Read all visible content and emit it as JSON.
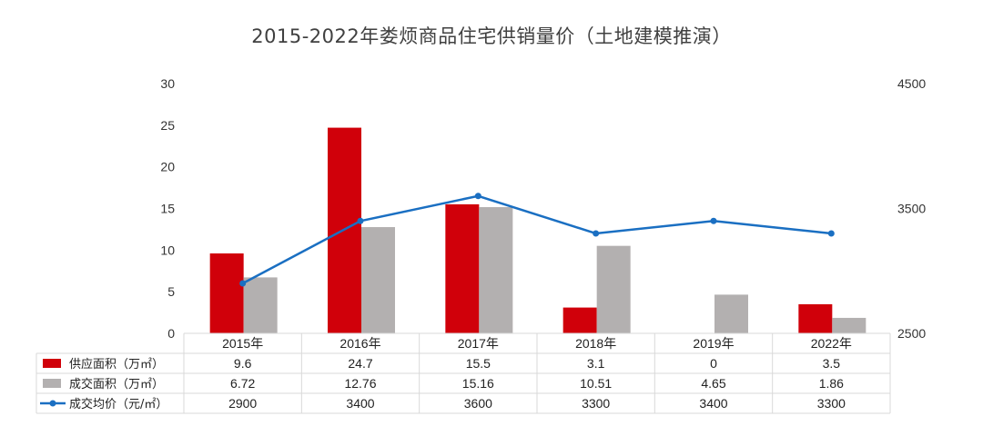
{
  "title": "2015-2022年娄烦商品住宅供销量价（土地建模推演）",
  "chart_data": {
    "type": "bar",
    "title": "2015-2022年娄烦商品住宅供销量价（土地建模推演）",
    "categories": [
      "2015年",
      "2016年",
      "2017年",
      "2018年",
      "2019年",
      "2022年"
    ],
    "series": [
      {
        "name": "供应面积（万㎡）",
        "type": "bar",
        "axis": "left",
        "color": "#d0000a",
        "values": [
          9.6,
          24.7,
          15.5,
          3.1,
          0,
          3.5
        ],
        "labels": [
          "9.6",
          "24.7",
          "15.5",
          "3.1",
          "0",
          "3.5"
        ]
      },
      {
        "name": "成交面积（万㎡）",
        "type": "bar",
        "axis": "left",
        "color": "#b3b0b0",
        "values": [
          6.72,
          12.76,
          15.16,
          10.51,
          4.65,
          1.86
        ],
        "labels": [
          "6.72",
          "12.76",
          "15.16",
          "10.51",
          "4.65",
          "1.86"
        ]
      },
      {
        "name": "成交均价（元/㎡）",
        "type": "line",
        "axis": "right",
        "color": "#1a6fc2",
        "values": [
          2900,
          3400,
          3600,
          3300,
          3400,
          3300
        ],
        "labels": [
          "2900",
          "3400",
          "3600",
          "3300",
          "3400",
          "3300"
        ]
      }
    ],
    "left_axis": {
      "min": 0,
      "max": 30,
      "ticks": [
        "0",
        "5",
        "10",
        "15",
        "20",
        "25",
        "30"
      ]
    },
    "right_axis": {
      "min": 2500,
      "max": 4500,
      "ticks": [
        "2500",
        "3500",
        "4500"
      ]
    },
    "data_table": true,
    "grid": false
  }
}
